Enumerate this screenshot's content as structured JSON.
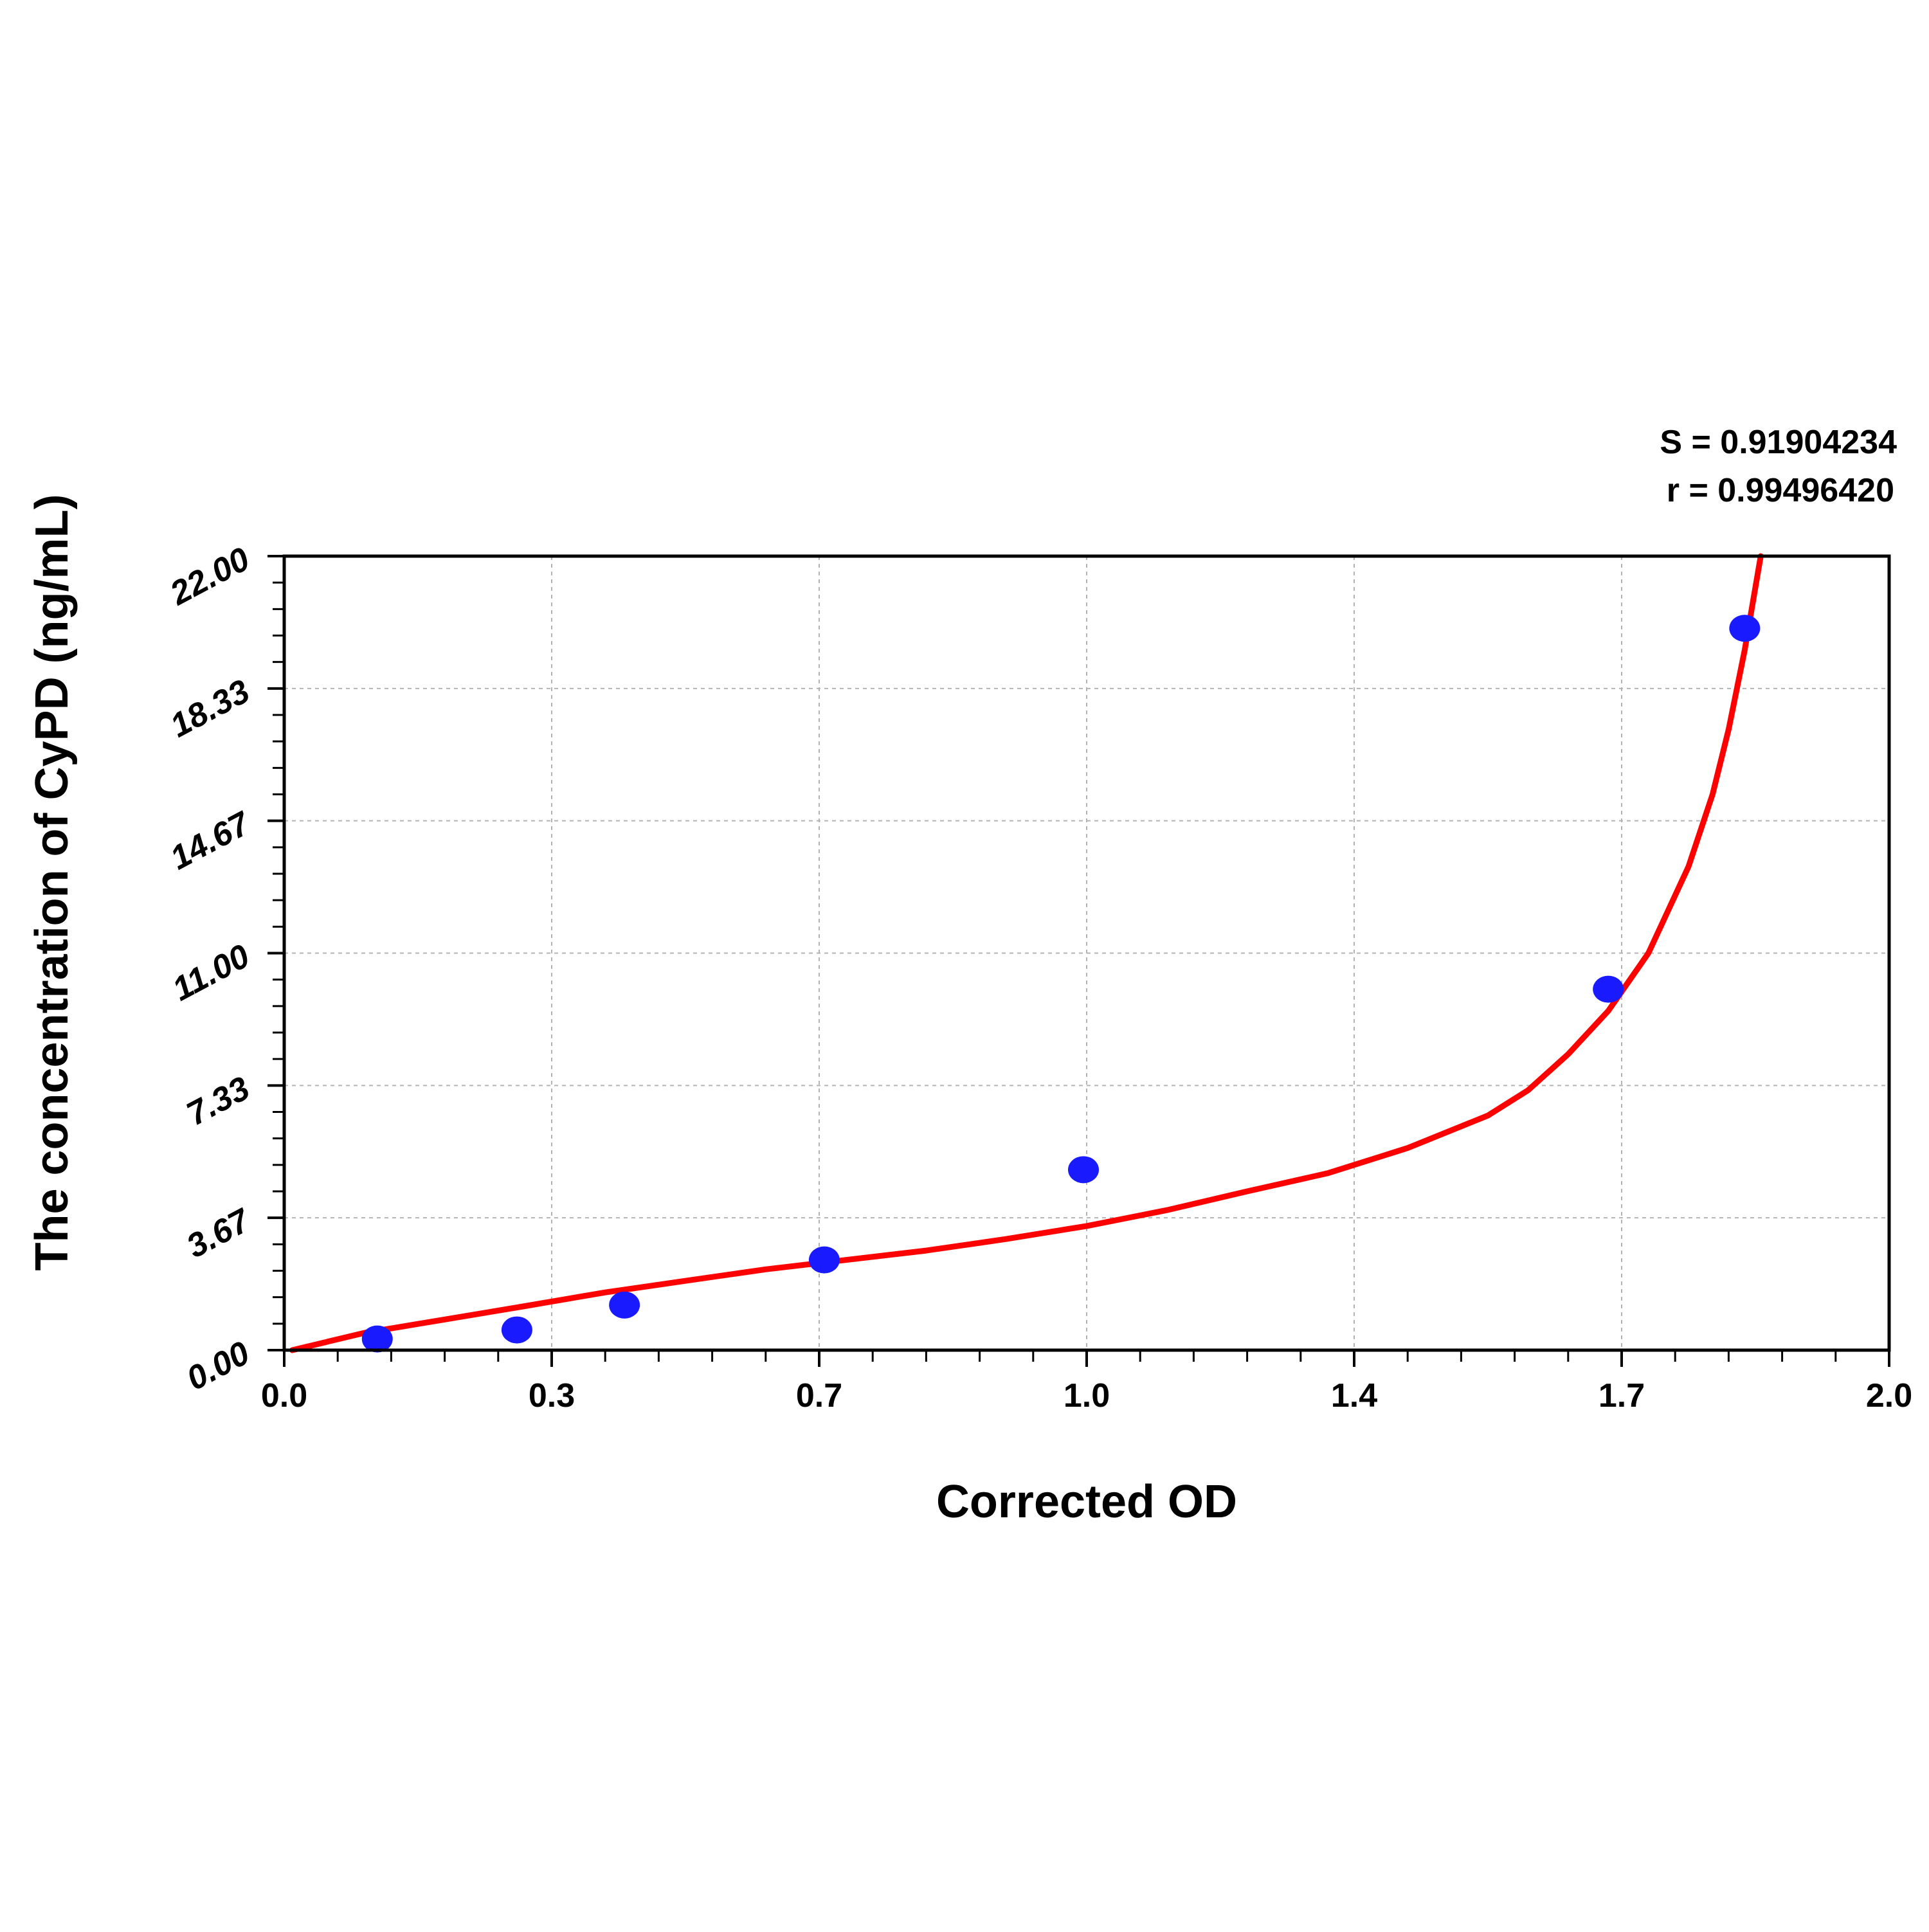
{
  "chart_data": {
    "type": "scatter",
    "title": "",
    "xlabel": "Corrected OD",
    "ylabel": "The concentration of CyPD (ng/mL)",
    "xlim": [
      0.0,
      2.0
    ],
    "ylim": [
      0.0,
      22.0
    ],
    "x_ticks": [
      "0.0",
      "0.3",
      "0.7",
      "1.0",
      "1.4",
      "1.7",
      "2.0"
    ],
    "y_ticks": [
      "0.00",
      "3.67",
      "7.33",
      "11.00",
      "14.67",
      "18.33",
      "22.00"
    ],
    "grid": true,
    "stats": [
      {
        "label": "S = 0.91904234"
      },
      {
        "label": "r = 0.99496420"
      }
    ],
    "series": [
      {
        "type": "scatter",
        "color": "#1a1aff",
        "x": [
          0.116,
          0.29,
          0.424,
          0.673,
          0.996,
          1.65,
          1.82
        ],
        "y": [
          0.31,
          0.56,
          1.25,
          2.5,
          5.0,
          10.0,
          20.0
        ]
      },
      {
        "type": "line",
        "color": "#ff0000",
        "x": [
          0.01,
          0.1,
          0.2,
          0.3,
          0.4,
          0.5,
          0.6,
          0.7,
          0.8,
          0.9,
          1.0,
          1.1,
          1.2,
          1.3,
          1.4,
          1.5,
          1.55,
          1.6,
          1.65,
          1.7,
          1.75,
          1.78,
          1.8,
          1.82,
          1.84
        ],
        "y": [
          0.0,
          0.48,
          0.85,
          1.22,
          1.6,
          1.92,
          2.24,
          2.5,
          2.76,
          3.08,
          3.44,
          3.88,
          4.4,
          4.9,
          5.6,
          6.5,
          7.2,
          8.2,
          9.4,
          11.0,
          13.4,
          15.4,
          17.2,
          19.4,
          22.0
        ]
      }
    ]
  }
}
